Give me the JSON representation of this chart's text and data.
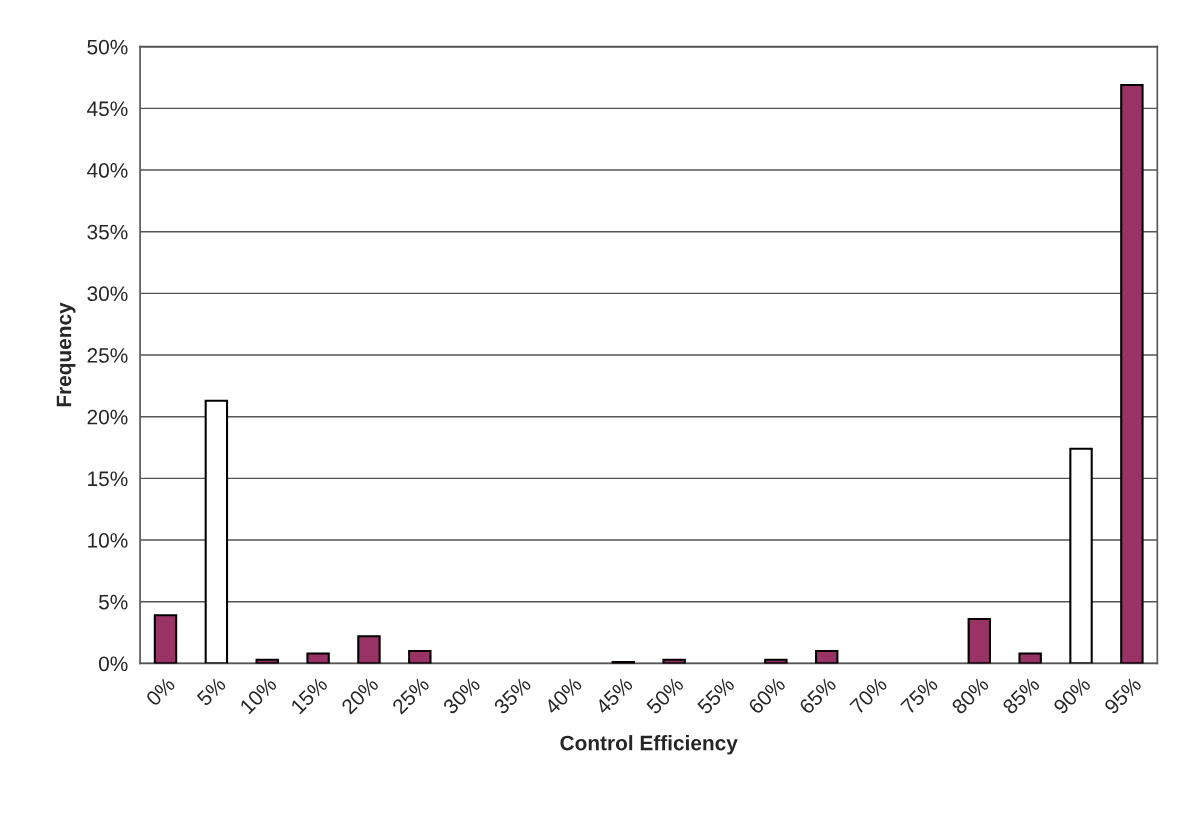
{
  "chart_data": {
    "type": "bar",
    "xlabel": "Control Efficiency",
    "ylabel": "Frequency",
    "categories": [
      "0%",
      "5%",
      "10%",
      "15%",
      "20%",
      "25%",
      "30%",
      "35%",
      "40%",
      "45%",
      "50%",
      "55%",
      "60%",
      "65%",
      "70%",
      "75%",
      "80%",
      "85%",
      "90%",
      "95%"
    ],
    "values": [
      3.9,
      21.3,
      0.3,
      0.8,
      2.2,
      1.0,
      null,
      null,
      null,
      0.1,
      0.3,
      null,
      0.3,
      1.0,
      null,
      null,
      3.6,
      0.8,
      17.4,
      46.9
    ],
    "colors": [
      "#993366",
      "#ffffff",
      "#993366",
      "#993366",
      "#993366",
      "#993366",
      null,
      null,
      null,
      "#993366",
      "#993366",
      null,
      "#993366",
      "#993366",
      null,
      null,
      "#993366",
      "#993366",
      "#ffffff",
      "#993366"
    ],
    "ylim": [
      0,
      50
    ],
    "yticks": [
      {
        "value": 0,
        "label": "0%"
      },
      {
        "value": 5,
        "label": "5%"
      },
      {
        "value": 10,
        "label": "10%"
      },
      {
        "value": 15,
        "label": "15%"
      },
      {
        "value": 20,
        "label": "20%"
      },
      {
        "value": 25,
        "label": "25%"
      },
      {
        "value": 30,
        "label": "30%"
      },
      {
        "value": 35,
        "label": "35%"
      },
      {
        "value": 40,
        "label": "40%"
      },
      {
        "value": 45,
        "label": "45%"
      },
      {
        "value": 50,
        "label": "50%"
      }
    ],
    "grid": "y",
    "legend": false
  }
}
